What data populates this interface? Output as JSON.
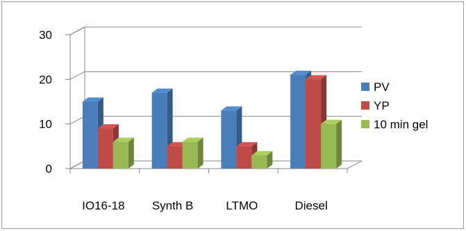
{
  "chart_data": {
    "type": "bar",
    "style": "3d-clustered-column",
    "categories": [
      "IO16-18",
      "Synth B",
      "LTMO",
      "Diesel"
    ],
    "series": [
      {
        "name": "PV",
        "values": [
          15,
          17,
          13,
          21
        ],
        "color": "#4a7ebb"
      },
      {
        "name": "YP",
        "values": [
          9,
          5,
          5,
          20
        ],
        "color": "#be4b48"
      },
      {
        "name": "10 min gel",
        "values": [
          6,
          6,
          3,
          10
        ],
        "color": "#98b954"
      }
    ],
    "ylim": [
      0,
      30
    ],
    "yticks": [
      0,
      10,
      20,
      30
    ],
    "grid": true,
    "legend_position": "right"
  }
}
